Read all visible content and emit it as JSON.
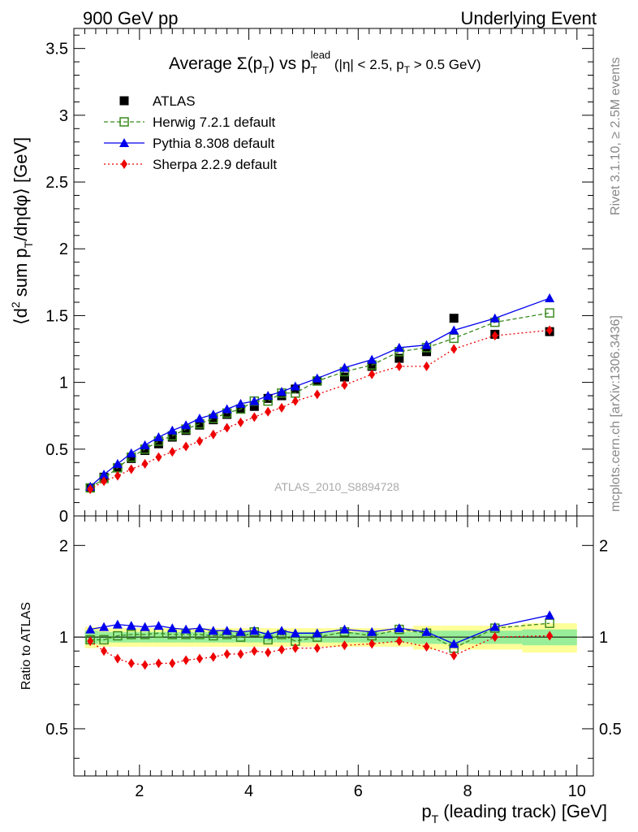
{
  "header": {
    "left": "900 GeV pp",
    "right": "Underlying Event"
  },
  "side": {
    "rivet": "Rivet 3.1.10, ≥ 2.5M events",
    "mcplots": "mcplots.cern.ch [arXiv:1306.3436]"
  },
  "watermark": "ATLAS_2010_S8894728",
  "chart_data": [
    {
      "type": "scatter",
      "title": "Average Σ(pT) vs pT lead (|η| < 2.5, pT > 0.5 GeV)",
      "title_parts": {
        "a": "Average ",
        "sigma": "Σ(p",
        "t": "T",
        "b": ") vs p",
        "lead": "lead",
        "c": " (|η| < 2.5, p",
        "d": " > 0.5 GeV)"
      },
      "ylabel": "⟨d² sum pT/dηdφ⟩ [GeV]",
      "ylabel_parts": {
        "a": "⟨d",
        "sup": "2",
        "b": " sum p",
        "sub": "T",
        "c": "/dηdφ⟩ [GeV]"
      },
      "xlim": [
        0.8,
        10.3
      ],
      "ylim": [
        0,
        3.65
      ],
      "yticks": [
        "0",
        "0.5",
        "1",
        "1.5",
        "2",
        "2.5",
        "3",
        "3.5"
      ],
      "legend_position": "top-left",
      "x": [
        1.1,
        1.35,
        1.6,
        1.85,
        2.1,
        2.35,
        2.6,
        2.85,
        3.1,
        3.35,
        3.6,
        3.85,
        4.1,
        4.35,
        4.6,
        4.85,
        5.25,
        5.75,
        6.25,
        6.75,
        7.25,
        7.75,
        8.5,
        9.5
      ],
      "series": [
        {
          "name": "ATLAS",
          "color": "#000000",
          "marker": "filled-square",
          "values": [
            0.21,
            0.29,
            0.36,
            0.43,
            0.49,
            0.54,
            0.59,
            0.64,
            0.68,
            0.72,
            0.76,
            0.8,
            0.82,
            0.88,
            0.9,
            0.95,
            1.01,
            1.04,
            1.12,
            1.18,
            1.23,
            1.48,
            1.36,
            1.38
          ]
        },
        {
          "name": "Herwig 7.2.1 default",
          "color": "#3a8a1e",
          "marker": "open-square",
          "line": "dashed",
          "values": [
            0.21,
            0.28,
            0.36,
            0.44,
            0.5,
            0.56,
            0.6,
            0.65,
            0.69,
            0.73,
            0.77,
            0.8,
            0.86,
            0.86,
            0.92,
            0.92,
            1.01,
            1.08,
            1.13,
            1.23,
            1.26,
            1.33,
            1.45,
            1.52
          ]
        },
        {
          "name": "Pythia 8.308 default",
          "color": "#0000ee",
          "marker": "triangle",
          "line": "solid",
          "values": [
            0.22,
            0.31,
            0.39,
            0.47,
            0.53,
            0.59,
            0.64,
            0.68,
            0.73,
            0.76,
            0.8,
            0.84,
            0.86,
            0.9,
            0.93,
            0.97,
            1.03,
            1.11,
            1.17,
            1.26,
            1.28,
            1.39,
            1.48,
            1.63
          ]
        },
        {
          "name": "Sherpa 2.2.9 default",
          "color": "#ee0000",
          "marker": "diamond",
          "line": "dotted",
          "values": [
            0.2,
            0.26,
            0.3,
            0.35,
            0.39,
            0.44,
            0.48,
            0.52,
            0.56,
            0.61,
            0.66,
            0.7,
            0.74,
            0.78,
            0.81,
            0.86,
            0.91,
            0.98,
            1.06,
            1.12,
            1.12,
            1.25,
            1.35,
            1.39
          ]
        }
      ]
    },
    {
      "type": "scatter",
      "ylabel": "Ratio to ATLAS",
      "xlabel": "pT (leading track) [GeV]",
      "xlabel_parts": {
        "a": "p",
        "sub": "T",
        "b": " (leading track) [GeV]"
      },
      "xlim": [
        0.8,
        10.3
      ],
      "ylim": [
        0.35,
        2.5
      ],
      "yticks": [
        "0.5",
        "1",
        "2"
      ],
      "xticks": [
        "2",
        "4",
        "6",
        "8",
        "10"
      ],
      "band_edges": [
        1.0,
        1.25,
        1.5,
        1.75,
        2.0,
        2.25,
        2.5,
        2.75,
        3.0,
        3.25,
        3.5,
        3.75,
        4.0,
        4.25,
        4.5,
        4.75,
        5.0,
        5.5,
        6.0,
        6.5,
        7.0,
        7.5,
        8.0,
        9.0,
        10.0
      ],
      "band_inner_half": [
        0.05,
        0.04,
        0.04,
        0.04,
        0.04,
        0.04,
        0.04,
        0.04,
        0.04,
        0.04,
        0.04,
        0.04,
        0.04,
        0.04,
        0.04,
        0.04,
        0.04,
        0.04,
        0.04,
        0.04,
        0.05,
        0.05,
        0.05,
        0.06
      ],
      "band_outer_half": [
        0.08,
        0.07,
        0.07,
        0.07,
        0.07,
        0.07,
        0.07,
        0.07,
        0.07,
        0.07,
        0.07,
        0.07,
        0.07,
        0.07,
        0.07,
        0.07,
        0.07,
        0.07,
        0.07,
        0.07,
        0.09,
        0.09,
        0.09,
        0.11
      ],
      "x": [
        1.1,
        1.35,
        1.6,
        1.85,
        2.1,
        2.35,
        2.6,
        2.85,
        3.1,
        3.35,
        3.6,
        3.85,
        4.1,
        4.35,
        4.6,
        4.85,
        5.25,
        5.75,
        6.25,
        6.75,
        7.25,
        7.75,
        8.5,
        9.5
      ],
      "series": [
        {
          "name": "Herwig 7.2.1 default",
          "color": "#3a8a1e",
          "marker": "open-square",
          "line": "dashed",
          "values": [
            0.98,
            0.98,
            1.01,
            1.02,
            1.02,
            1.03,
            1.02,
            1.02,
            1.02,
            1.01,
            1.02,
            1.0,
            1.04,
            0.98,
            1.02,
            0.97,
            1.0,
            1.04,
            1.01,
            1.06,
            1.03,
            0.92,
            1.07,
            1.11
          ]
        },
        {
          "name": "Pythia 8.308 default",
          "color": "#0000ee",
          "marker": "triangle",
          "line": "solid",
          "values": [
            1.06,
            1.08,
            1.1,
            1.09,
            1.08,
            1.09,
            1.07,
            1.06,
            1.07,
            1.05,
            1.05,
            1.04,
            1.05,
            1.02,
            1.05,
            1.03,
            1.03,
            1.06,
            1.04,
            1.07,
            1.04,
            0.95,
            1.08,
            1.18
          ]
        },
        {
          "name": "Sherpa 2.2.9 default",
          "color": "#ee0000",
          "marker": "diamond",
          "line": "dotted",
          "values": [
            0.97,
            0.9,
            0.85,
            0.82,
            0.81,
            0.82,
            0.82,
            0.84,
            0.85,
            0.86,
            0.88,
            0.88,
            0.9,
            0.89,
            0.91,
            0.92,
            0.92,
            0.94,
            0.95,
            0.97,
            0.93,
            0.87,
            1.0,
            1.01
          ]
        }
      ]
    }
  ]
}
